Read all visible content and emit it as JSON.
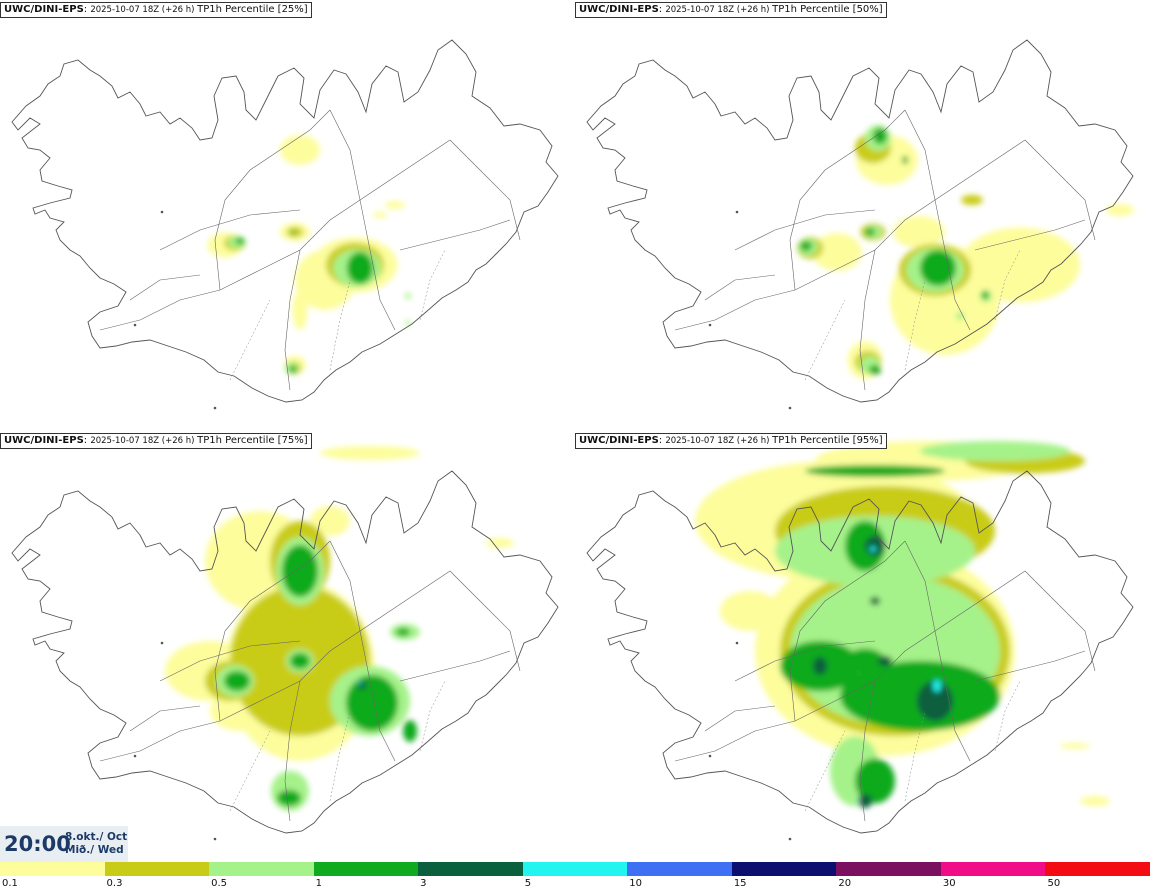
{
  "panels": [
    {
      "model": "UWC/DINI-EPS",
      "run": "2025-10-07 18Z (+26 h)",
      "label": "TP1h Percentile [25%]",
      "percentile": 25
    },
    {
      "model": "UWC/DINI-EPS",
      "run": "2025-10-07 18Z (+26 h)",
      "label": "TP1h Percentile [50%]",
      "percentile": 50
    },
    {
      "model": "UWC/DINI-EPS",
      "run": "2025-10-07 18Z (+26 h)",
      "label": "TP1h Percentile [75%]",
      "percentile": 75
    },
    {
      "model": "UWC/DINI-EPS",
      "run": "2025-10-07 18Z (+26 h)",
      "label": "TP1h Percentile [95%]",
      "percentile": 95
    }
  ],
  "valid_time": {
    "time": "20:00",
    "date_line1": "8.okt./ Oct",
    "date_line2": "Mið./ Wed"
  },
  "legend": {
    "levels": [
      "0.1",
      "0.3",
      "0.5",
      "1",
      "3",
      "5",
      "10",
      "15",
      "20",
      "30",
      "50"
    ],
    "colors": [
      "#fdfd9c",
      "#c9cc16",
      "#a6f28a",
      "#10aa1e",
      "#0a5f3c",
      "#22f5f0",
      "#3f6ff2",
      "#0b1070",
      "#7b1060",
      "#f00d87",
      "#f30c12"
    ]
  }
}
